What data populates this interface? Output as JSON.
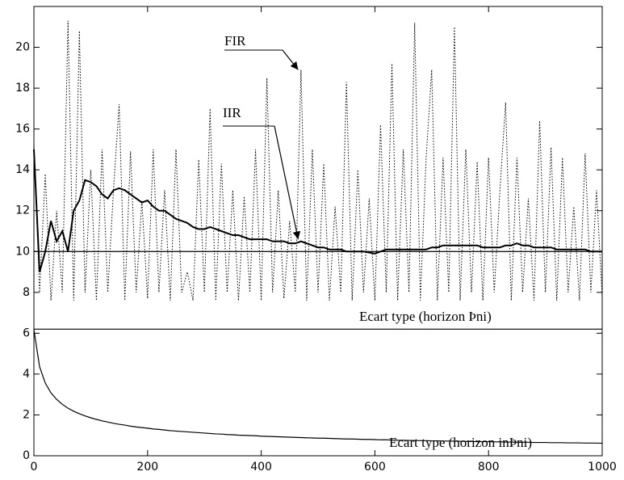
{
  "chart_data": {
    "type": "line",
    "xlim": [
      0,
      1000
    ],
    "xticks": [
      0,
      200,
      400,
      600,
      800,
      1000
    ],
    "ylim": [
      0,
      22
    ],
    "yticks": [
      0,
      2,
      4,
      6,
      8,
      10,
      12,
      14,
      16,
      18,
      20
    ],
    "x": [
      0,
      10,
      20,
      30,
      40,
      50,
      60,
      70,
      80,
      90,
      100,
      110,
      120,
      130,
      140,
      150,
      160,
      170,
      180,
      190,
      200,
      210,
      220,
      230,
      240,
      250,
      260,
      270,
      280,
      290,
      300,
      310,
      320,
      330,
      340,
      350,
      360,
      370,
      380,
      390,
      400,
      410,
      420,
      430,
      440,
      450,
      460,
      470,
      480,
      490,
      500,
      510,
      520,
      530,
      540,
      550,
      560,
      570,
      580,
      590,
      600,
      610,
      620,
      630,
      640,
      650,
      660,
      670,
      680,
      690,
      700,
      710,
      720,
      730,
      740,
      750,
      760,
      770,
      780,
      790,
      800,
      810,
      820,
      830,
      840,
      850,
      860,
      870,
      880,
      890,
      900,
      910,
      920,
      930,
      940,
      950,
      960,
      970,
      980,
      990,
      1000
    ],
    "series": [
      {
        "color": "#000000",
        "style": "dotted",
        "values": [
          15.3,
          8,
          13.8,
          7.6,
          12,
          8,
          21.3,
          7.6,
          20.8,
          8,
          14,
          7.6,
          15,
          8,
          13,
          17.2,
          7.6,
          14.9,
          8,
          12.5,
          7.7,
          15,
          8,
          13,
          7.6,
          15,
          8,
          9,
          7.6,
          14.5,
          8,
          17,
          7.6,
          14.3,
          8,
          13,
          7.6,
          12.7,
          8,
          15,
          7.6,
          18.5,
          8,
          13,
          7.7,
          11.5,
          8,
          18.9,
          7.6,
          15,
          8,
          14.3,
          7.6,
          12.2,
          8,
          18.3,
          7.6,
          14,
          8,
          12.6,
          7.6,
          16.2,
          8,
          19.2,
          7.6,
          15,
          8,
          21.2,
          7.6,
          14.5,
          18.9,
          7.6,
          14.6,
          8,
          21,
          7.6,
          15,
          8,
          14.4,
          7.6,
          14.6,
          8,
          13,
          17.3,
          7.6,
          14.6,
          8,
          12.6,
          7.6,
          16.4,
          8,
          15.1,
          7.6,
          14.6,
          8,
          12.2,
          7.6,
          14.8,
          8,
          13,
          7.8
        ]
      },
      {
        "color": "#000000",
        "style": "solid-thick",
        "values": [
          15,
          9,
          10,
          11.5,
          10.5,
          11,
          10,
          12,
          12.5,
          13.5,
          13.4,
          13.2,
          12.8,
          12.6,
          13,
          13.1,
          13,
          12.8,
          12.6,
          12.4,
          12.5,
          12.2,
          12,
          12,
          11.8,
          11.6,
          11.5,
          11.4,
          11.2,
          11.1,
          11.1,
          11.2,
          11.1,
          11,
          10.9,
          10.8,
          10.8,
          10.7,
          10.6,
          10.6,
          10.6,
          10.6,
          10.5,
          10.5,
          10.5,
          10.4,
          10.4,
          10.5,
          10.4,
          10.3,
          10.2,
          10.2,
          10.1,
          10.1,
          10.1,
          10,
          10,
          10,
          10,
          9.95,
          9.9,
          10,
          10.1,
          10.1,
          10.1,
          10.1,
          10.1,
          10.1,
          10.1,
          10.1,
          10.2,
          10.2,
          10.3,
          10.3,
          10.3,
          10.3,
          10.3,
          10.3,
          10.3,
          10.2,
          10.2,
          10.2,
          10.2,
          10.3,
          10.3,
          10.4,
          10.3,
          10.3,
          10.2,
          10.2,
          10.2,
          10.2,
          10.1,
          10.1,
          10.1,
          10.1,
          10.1,
          10.1,
          10,
          10,
          10
        ]
      },
      {
        "color": "#000000",
        "style": "solid",
        "values": [
          6.17,
          4.36,
          3.56,
          3.08,
          2.76,
          2.52,
          2.33,
          2.18,
          2.06,
          1.95,
          1.86,
          1.78,
          1.71,
          1.65,
          1.59,
          1.54,
          1.5,
          1.45,
          1.41,
          1.38,
          1.35,
          1.31,
          1.29,
          1.26,
          1.23,
          1.21,
          1.19,
          1.17,
          1.15,
          1.13,
          1.11,
          1.09,
          1.07,
          1.06,
          1.04,
          1.03,
          1.01,
          1,
          0.99,
          0.98,
          0.96,
          0.95,
          0.94,
          0.93,
          0.92,
          0.91,
          0.9,
          0.89,
          0.88,
          0.87,
          0.86,
          0.86,
          0.85,
          0.84,
          0.83,
          0.82,
          0.82,
          0.81,
          0.8,
          0.8,
          0.79,
          0.78,
          0.78,
          0.77,
          0.76,
          0.76,
          0.75,
          0.75,
          0.74,
          0.74,
          0.73,
          0.73,
          0.72,
          0.72,
          0.71,
          0.71,
          0.7,
          0.7,
          0.69,
          0.69,
          0.69,
          0.68,
          0.68,
          0.67,
          0.67,
          0.66,
          0.66,
          0.66,
          0.65,
          0.65,
          0.65,
          0.64,
          0.64,
          0.64,
          0.63,
          0.63,
          0.63,
          0.62,
          0.62,
          0.62,
          0.61
        ]
      }
    ],
    "hlines": [
      10,
      6.2
    ],
    "annotations": [
      {
        "text": "FIR",
        "x": 465,
        "y": 18.9
      },
      {
        "text": "IIR",
        "x": 465,
        "y": 10.6
      },
      {
        "text": "Ecart type (horizon Þni)"
      },
      {
        "text": "Ecart type (horizon inÞni)"
      }
    ]
  }
}
